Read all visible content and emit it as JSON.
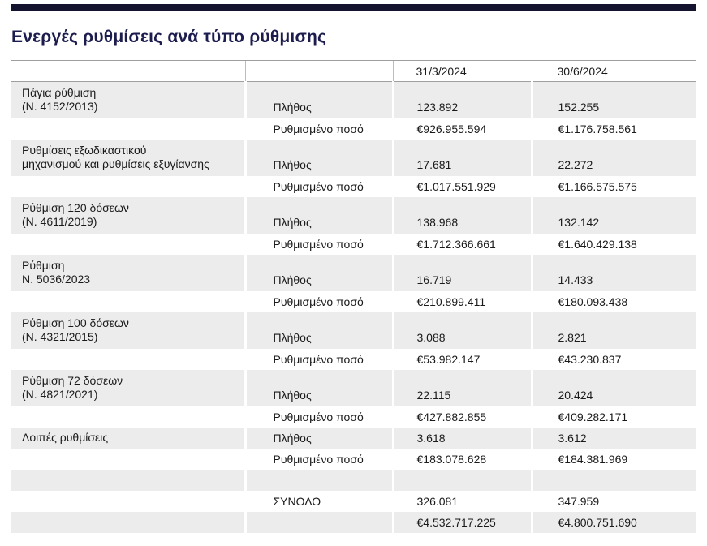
{
  "page": {
    "title": "Ενεργές ρυθμίσεις ανά τύπο ρύθμισης",
    "accent_bar_color": "#14142e",
    "title_color": "#1c1c4e",
    "row_shade_color": "#ececec"
  },
  "table": {
    "header": {
      "date1": "31/3/2024",
      "date2": "30/6/2024"
    },
    "labels": {
      "count": "Πλήθος",
      "amount": "Ρυθμισμένο ποσό",
      "total": "ΣΥΝΟΛΟ"
    },
    "blocks": [
      {
        "name": "Πάγια ρύθμιση\n(Ν. 4152/2013)",
        "count_q1": "123.892",
        "count_q2": "152.255",
        "amount_q1": "€926.955.594",
        "amount_q2": "€1.176.758.561"
      },
      {
        "name": "Ρυθμίσεις εξωδικαστικού\nμηχανισμού και ρυθμίσεις εξυγίανσης",
        "count_q1": "17.681",
        "count_q2": "22.272",
        "amount_q1": "€1.017.551.929",
        "amount_q2": "€1.166.575.575"
      },
      {
        "name": "Ρύθμιση 120 δόσεων\n(Ν. 4611/2019)",
        "count_q1": "138.968",
        "count_q2": "132.142",
        "amount_q1": "€1.712.366.661",
        "amount_q2": "€1.640.429.138"
      },
      {
        "name": "Ρύθμιση\nΝ. 5036/2023",
        "count_q1": "16.719",
        "count_q2": "14.433",
        "amount_q1": "€210.899.411",
        "amount_q2": "€180.093.438"
      },
      {
        "name": "Ρύθμιση 100 δόσεων\n(Ν. 4321/2015)",
        "count_q1": "3.088",
        "count_q2": "2.821",
        "amount_q1": "€53.982.147",
        "amount_q2": "€43.230.837"
      },
      {
        "name": "Ρύθμιση 72 δόσεων\n(Ν. 4821/2021)",
        "count_q1": "22.115",
        "count_q2": "20.424",
        "amount_q1": "€427.882.855",
        "amount_q2": "€409.282.171"
      },
      {
        "name": "Λοιπές ρυθμίσεις",
        "count_q1": "3.618",
        "count_q2": "3.612",
        "amount_q1": "€183.078.628",
        "amount_q2": "€184.381.969"
      }
    ],
    "totals": {
      "count_q1": "326.081",
      "count_q2": "347.959",
      "amount_q1": "€4.532.717.225",
      "amount_q2": "€4.800.751.690"
    }
  }
}
